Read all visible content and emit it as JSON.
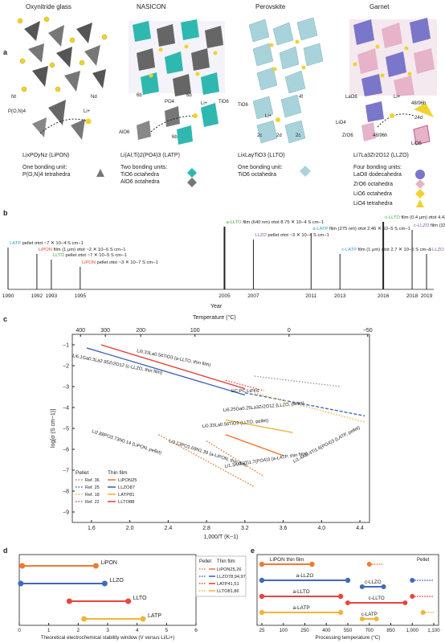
{
  "panel_a": {
    "letter": "a",
    "columns": [
      {
        "title": "Oxynitride glass",
        "formula": "Li",
        "formula_full": "LixPOyNz",
        "formula_display": "LixPOyNz (LiPON)",
        "acronym": "LiPON",
        "labels": [
          "Nt",
          "Nd",
          "P(O,N)4",
          "Li+"
        ],
        "unit_title": "One bonding unit:",
        "units": [
          "P(O,N)4 tetrahedra"
        ]
      },
      {
        "title": "NASICON",
        "formula_display": "Li(Al,Ti)2(PO4)3 (LATP)",
        "acronym": "LATP",
        "labels": [
          "6b",
          "PO4",
          "6b",
          "Li+",
          "TiO6",
          "AlO6",
          "6b"
        ],
        "unit_title": "Two bonding units:",
        "units": [
          "TiO6 octahedra",
          "AlO6 octahedra"
        ]
      },
      {
        "title": "Perovskite",
        "formula_display": "LixLayTiO3 (LLTO)",
        "acronym": "LLTO",
        "labels": [
          "TiO6",
          "4f",
          "Li+",
          "2c",
          "2d",
          "2c"
        ],
        "unit_title": "One bonding unit:",
        "units": [
          "TiO6 octahedra"
        ]
      },
      {
        "title": "Garnet",
        "formula_display": "Li7La3Zr2O12 (LLZO)",
        "acronym": "LLZO",
        "labels": [
          "LaO8",
          "Li+",
          "48/96h",
          "24d",
          "LiO4",
          "ZrO6",
          "48/96h",
          "LiO6"
        ],
        "unit_title": "Four bonding units:",
        "units": [
          "LaO8 dodecahedra",
          "ZrO6 octahedra",
          "LiO6 octahedra",
          "LiO4 tetrahedra"
        ]
      }
    ]
  },
  "panel_b": {
    "letter": "b",
    "xlabel": "Year",
    "years": [
      "1990",
      "1992",
      "1993",
      "1995",
      "2005",
      "2007",
      "2011",
      "2013",
      "2016",
      "2018",
      "2019"
    ],
    "events": [
      {
        "year": 1990,
        "material": "LATP",
        "color": "#2a9fd6",
        "text": "LATP pellet σtot ~7 ✕ 10−4 S cm−1"
      },
      {
        "year": 1992,
        "material": "LiPON",
        "color": "#e8453c",
        "text": "LiPON film (1 μm) σtot ~2 ✕ 10−6 S cm−1"
      },
      {
        "year": 1993,
        "material": "LLTO",
        "color": "#3aa83a",
        "text": "LLTO pellet σtot ~7 ✕ 10−5 S cm−1"
      },
      {
        "year": 1995,
        "material": "LiPON",
        "color": "#e8453c",
        "text": "LiPON pellet σtot ~3 ✕ 10−7 S cm−1"
      },
      {
        "year": 2005,
        "material": "a-LLTO",
        "color": "#3aa83a",
        "text": "a-LLTO film (640 nm) σtot 8.75 ✕ 10−4 S cm−1"
      },
      {
        "year": 2007,
        "material": "LLZO",
        "color": "#7a4fb5",
        "text": "LLZO pellet σtot ~3 ✕ 10−4 S cm−1"
      },
      {
        "year": 2011,
        "material": "a-LATP",
        "color": "#2a9fd6",
        "text": "a-LATP film (275 nm) σtot 2.46 ✕ 10−5 S cm−1"
      },
      {
        "year": 2013,
        "material": "c-LATP",
        "color": "#2a9fd6",
        "text": "c-LATP film (1 μm) σtot 2.7 ✕ 10−6 S cm−1"
      },
      {
        "year": 2016,
        "material": "c-LLTO",
        "color": "#3aa83a",
        "text": "c-LLTO film (0.4 μm) σtot 4.42 ✕ 10−6 S cm−1"
      },
      {
        "year": 2018,
        "material": "c-LLZO",
        "color": "#7a4fb5",
        "text": "c-LLZO film (330 nm) σtot 2.9 ✕ 10−6 S cm−1"
      },
      {
        "year": 2019,
        "material": "a-LLZO",
        "color": "#7a4fb5",
        "text": "a-LLZO film (300 nm) σtot 2.39 ✕ 10−6 S cm−1"
      }
    ]
  },
  "chart_data": [
    {
      "type": "line",
      "panel": "c",
      "xlabel": "1,000/T (K−1)",
      "ylabel": "log[σ (S cm−1)]",
      "top_axis_label": "Temperature (°C)",
      "top_ticks": [
        "400",
        "300",
        "200",
        "100",
        "0",
        "−50"
      ],
      "xlim": [
        1.4,
        4.5
      ],
      "ylim": [
        -9.5,
        -0.5
      ],
      "x_ticks": [
        "1.6",
        "2.0",
        "2.4",
        "2.8",
        "3.2",
        "3.6",
        "4.0",
        "4.4"
      ],
      "y_ticks": [
        "−1",
        "−2",
        "−3",
        "−4",
        "−5",
        "−6",
        "−7",
        "−8",
        "−9"
      ],
      "legend": {
        "pellet_title": "Pellet",
        "film_title": "Thin film",
        "pellet_refs": [
          "Ref. 36",
          "Ref. 25",
          "Ref. 18",
          "Ref. 22"
        ],
        "film_entries": [
          "LiPON25",
          "LLZO87",
          "LATP81",
          "LLTO88"
        ]
      },
      "series": [
        {
          "name": "LLTO thin film",
          "style": "solid",
          "color": "#e8453c",
          "x": [
            1.7,
            3.2
          ],
          "y": [
            -1.0,
            -3.1
          ]
        },
        {
          "name": "LLZO thin film",
          "style": "solid",
          "color": "#4169b8",
          "x": [
            1.55,
            3.2
          ],
          "y": [
            -1.15,
            -3.4
          ]
        },
        {
          "name": "LLZO pellet",
          "style": "dashed",
          "color": "#4169b8",
          "x": [
            3.2,
            4.45
          ],
          "y": [
            -3.3,
            -4.4
          ]
        },
        {
          "name": "LLTO pellet",
          "style": "dotted",
          "color": "#e8453c",
          "x": [
            3.0,
            3.4
          ],
          "y": [
            -2.7,
            -3.2
          ]
        },
        {
          "name": "LATP thin film",
          "style": "solid",
          "color": "#f2b43c",
          "x": [
            3.0,
            3.7
          ],
          "y": [
            -4.6,
            -5.2
          ]
        },
        {
          "name": "LATP pellet",
          "style": "dotted",
          "color": "#f2b43c",
          "x": [
            3.3,
            4.45
          ],
          "y": [
            -3.3,
            -4.7
          ]
        },
        {
          "name": "LiPON thin film",
          "style": "solid",
          "color": "#f07a33",
          "x": [
            3.0,
            3.6
          ],
          "y": [
            -5.3,
            -6.3
          ]
        },
        {
          "name": "LiPON pellet",
          "style": "dotted",
          "color": "#f07a33",
          "x": [
            2.3,
            3.3
          ],
          "y": [
            -5.3,
            -7.8
          ]
        },
        {
          "name": "LiPON thin film 2",
          "style": "dotted",
          "color": "#f07a33",
          "x": [
            2.8,
            3.4
          ],
          "y": [
            -5.6,
            -7.3
          ]
        },
        {
          "name": "EC:PC:LiPF6",
          "style": "dotted",
          "color": "#999999",
          "x": [
            3.3,
            4.2
          ],
          "y": [
            -2.5,
            -3.0
          ]
        }
      ],
      "annotations": [
        "Li0.33La0.56TiO3 (a-LLTO, thin film)",
        "Li6.1Ga0.3La2.95Zr2O12 (c-LLZO, thin film)",
        "EC:PC:LiPF6",
        "Li6.25Ga0.25La3Zr2O12 (LLZO, pellet)",
        "Li0.33La0.56TiO3 (LLTO, pellet)",
        "Li2.88PO3.73N0.14 (LiPON, pellet)",
        "Li3.13PO1.69N1.39 (a-LiPON, thin film)",
        "Li1.3Al0.3Ti1.7(PO4)3 (a-LATP, thin film)",
        "Li1.4Al0.4Ti1.6(PO4)3 (LATP, pellet)"
      ]
    },
    {
      "type": "bar",
      "panel": "d",
      "xlabel": "Theoretical electrochemical stability window (V versus Li/Li+)",
      "x_ticks": [
        "0",
        "1",
        "2",
        "3",
        "4",
        "5",
        "6"
      ],
      "xlim": [
        0,
        6
      ],
      "categories": [
        "LiPON",
        "LLZO",
        "LLTO",
        "LATP"
      ],
      "ranges": [
        [
          0.1,
          2.6
        ],
        [
          0.05,
          2.9
        ],
        [
          1.7,
          3.7
        ],
        [
          2.2,
          4.2
        ]
      ],
      "colors": [
        "#f07a33",
        "#4169b8",
        "#e8453c",
        "#f2b43c"
      ],
      "legend": {
        "pellet_title": "Pellet",
        "film_title": "Thin film",
        "entries": [
          "LiPON25,26",
          "LLZO78,94,97",
          "LATP41,51",
          "LLTO81,86"
        ]
      }
    },
    {
      "type": "bar",
      "panel": "e",
      "xlabel": "Processing temperature (°C)",
      "x_ticks": [
        "25",
        "100",
        "250",
        "400",
        "550",
        "700",
        "850",
        "1,000",
        "1,100"
      ],
      "legend_pellet": "Pellet",
      "rows": [
        {
          "label": "LiPON thin film",
          "range": [
            25,
            300
          ],
          "color": "#f07a33",
          "pellet": [
            700,
            800
          ]
        },
        {
          "label": "a-LLZO",
          "range": [
            25,
            550
          ],
          "color": "#4169b8",
          "extra": "c-LLZO",
          "extra_range": [
            650,
            800
          ],
          "pellet": [
            1000,
            1100
          ]
        },
        {
          "label": "a-LLTO",
          "range": [
            25,
            500
          ],
          "color": "#e8453c",
          "extra": "c-LLTO",
          "extra_range": [
            550,
            950
          ],
          "pellet": [
            1000,
            1100
          ]
        },
        {
          "label": "a-LATP",
          "range": [
            25,
            500
          ],
          "color": "#f2b43c",
          "extra": "c-LATP",
          "extra_range": [
            650,
            750
          ],
          "pellet": [
            1050,
            1100
          ]
        }
      ]
    }
  ],
  "colors": {
    "lipon": "#f07a33",
    "latp": "#2a9fd6",
    "llto": "#3aa83a",
    "llzo": "#7a4fb5",
    "grey_polyhedra": "#555555",
    "teal_polyhedra": "#2fb8b0",
    "pale_blue_polyhedra": "#a9d3da",
    "purple_polyhedra": "#7a76c9",
    "pink_polyhedra": "#e6b3c8",
    "yellow_atoms": "#f2d22e"
  }
}
